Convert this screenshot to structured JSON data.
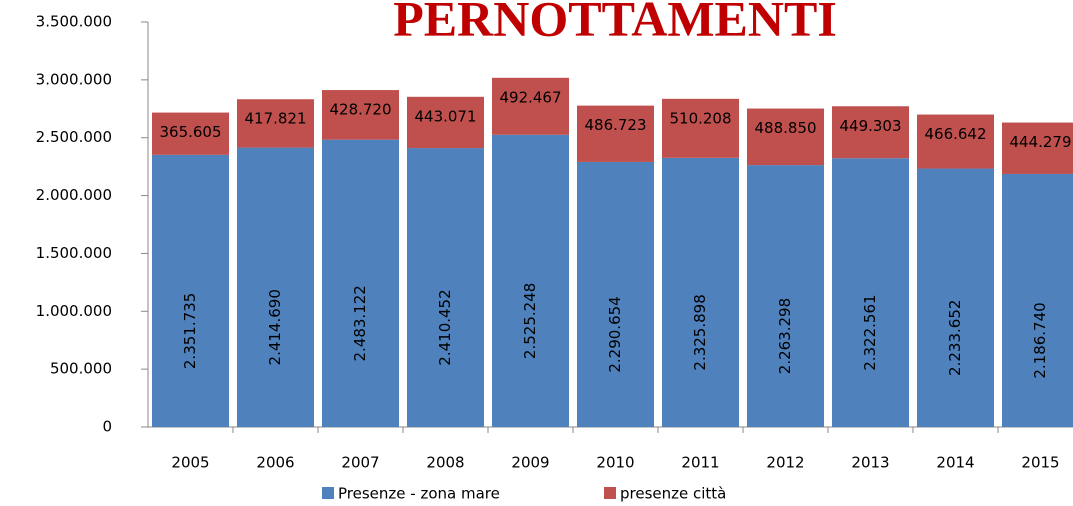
{
  "chart_data": {
    "type": "stacked_bar",
    "title": "PERNOTTAMENTI",
    "categories": [
      "2005",
      "2006",
      "2007",
      "2008",
      "2009",
      "2010",
      "2011",
      "2012",
      "2013",
      "2014",
      "2015"
    ],
    "series": [
      {
        "name": "Presenze - zona mare",
        "color": "#4f81bd",
        "values": [
          2351735,
          2414690,
          2483122,
          2410452,
          2525248,
          2290654,
          2325898,
          2263298,
          2322561,
          2233652,
          2186740
        ],
        "value_labels": [
          "2.351.735",
          "2.414.690",
          "2.483.122",
          "2.410.452",
          "2.525.248",
          "2.290.654",
          "2.325.898",
          "2.263.298",
          "2.322.561",
          "2.233.652",
          "2.186.740"
        ]
      },
      {
        "name": "presenze città",
        "color": "#c0504d",
        "values": [
          365605,
          417821,
          428720,
          443071,
          492467,
          486723,
          510208,
          488850,
          449303,
          466642,
          444279
        ],
        "value_labels": [
          "365.605",
          "417.821",
          "428.720",
          "443.071",
          "492.467",
          "486.723",
          "510.208",
          "488.850",
          "449.303",
          "466.642",
          "444.279"
        ]
      }
    ],
    "ylim": [
      0,
      3500000
    ],
    "yticks": [
      0,
      {
        "value": 500000,
        "label": "500.000"
      },
      {
        "value": 1000000,
        "label": "1.000.000"
      },
      {
        "value": 1500000,
        "label": "1.500.000"
      },
      {
        "value": 2000000,
        "label": "2.000.000"
      },
      {
        "value": 2500000,
        "label": "2.500.000"
      },
      {
        "value": 3000000,
        "label": "3.000.000"
      },
      {
        "value": 3500000,
        "label": "3.500.000"
      }
    ]
  }
}
